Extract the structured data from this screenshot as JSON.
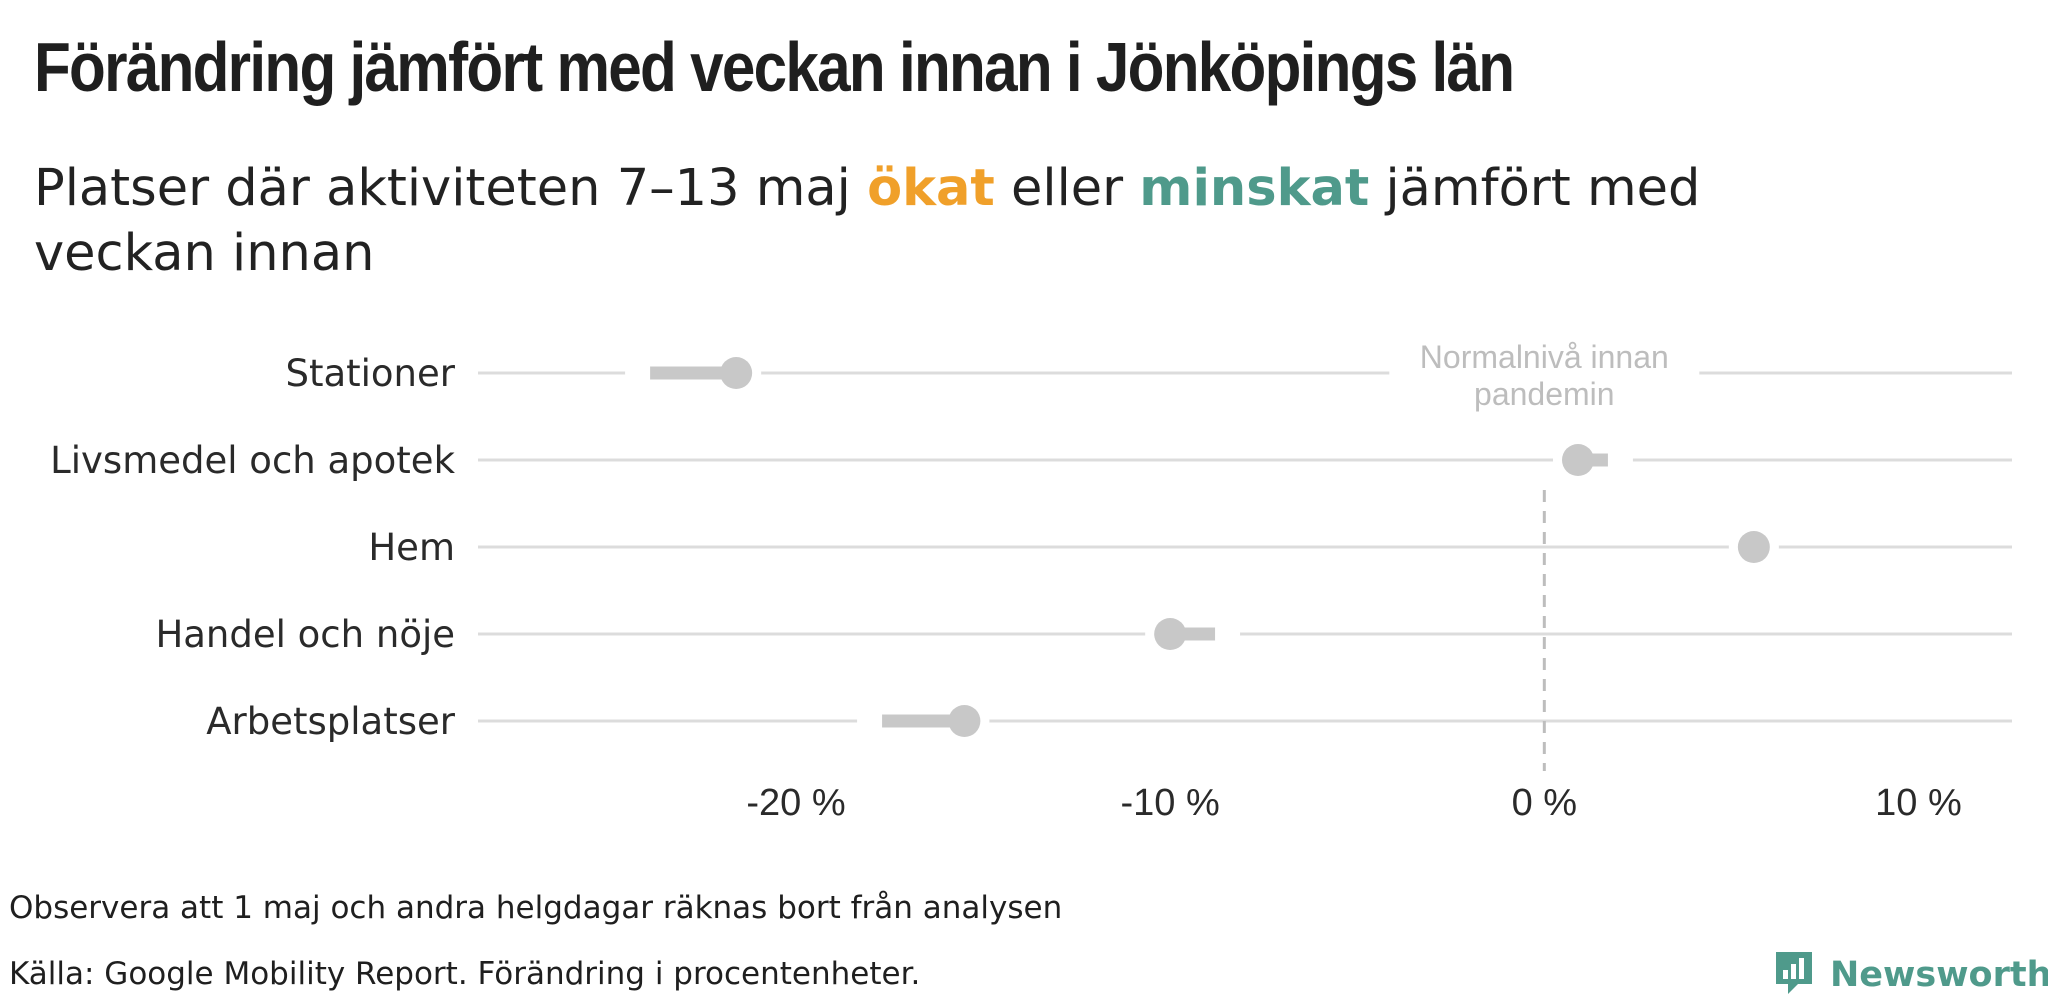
{
  "header": {
    "title": "Förändring jämfört med veckan innan i Jönköpings län",
    "subtitle_before": "Platser där aktiviteten 7–13 maj ",
    "subtitle_up": "ökat",
    "subtitle_middle": " eller ",
    "subtitle_down": "minskat",
    "subtitle_after": " jämfört med veckan innan"
  },
  "chart_data": {
    "type": "dot-arrow",
    "title": "Förändring jämfört med veckan innan i Jönköpings län",
    "xlabel": "",
    "ylabel": "",
    "xlim": [
      -28.5,
      12.5
    ],
    "x_ticks": [
      -20,
      -10,
      0,
      10
    ],
    "x_tick_labels": [
      "-20 %",
      "-10 %",
      "0 %",
      "10 %"
    ],
    "reference_value": 0,
    "reference_label": [
      "Normalnivå innan",
      "pandemin"
    ],
    "grid": true,
    "categories": [
      "Stationer",
      "Livsmedel och apotek",
      "Hem",
      "Handel och nöje",
      "Arbetsplatser"
    ],
    "previous_week": [
      -23.9,
      1.7,
      5.6,
      -8.8,
      -17.7
    ],
    "current_week": [
      -21.6,
      0.9,
      5.6,
      -10.0,
      -15.5
    ],
    "colors": {
      "increase": "#f0a02a",
      "decrease": "#4f9a8b",
      "neutral": "#c8c8c8",
      "gridline": "#dcdcdc",
      "reference_line": "#bdbdbd"
    }
  },
  "footer": {
    "note": "Observera att 1 maj och andra helgdagar räknas bort från analysen",
    "source": "Källa: Google Mobility Report. Förändring i procentenheter.",
    "brand": "Newsworthy",
    "brand_icon": "newsworthy-logo-icon"
  }
}
